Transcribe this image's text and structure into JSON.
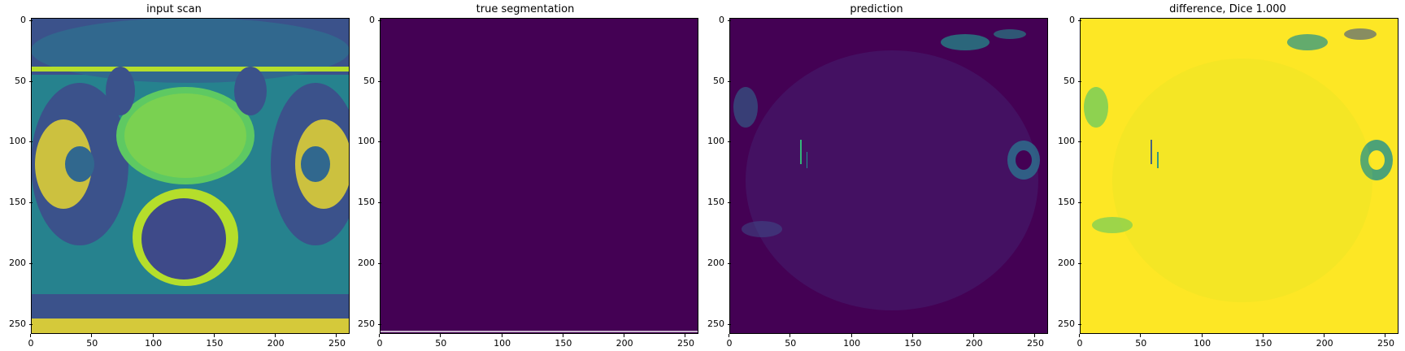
{
  "panels": [
    {
      "title": "input scan",
      "kind": "scan"
    },
    {
      "title": "true segmentation",
      "kind": "blank"
    },
    {
      "title": "prediction",
      "kind": "prediction"
    },
    {
      "title": "difference, Dice 1.000",
      "kind": "difference"
    }
  ],
  "axes": {
    "x_ticks": [
      "0",
      "50",
      "100",
      "150",
      "200",
      "250"
    ],
    "y_ticks": [
      "0",
      "50",
      "100",
      "150",
      "200",
      "250"
    ],
    "range": [
      0,
      255
    ]
  },
  "colors": {
    "viridis_dark": "#440154",
    "viridis_teal": "#21918c",
    "viridis_green": "#5ec962",
    "viridis_yellow": "#fde725",
    "viridis_blue": "#3b528b"
  }
}
